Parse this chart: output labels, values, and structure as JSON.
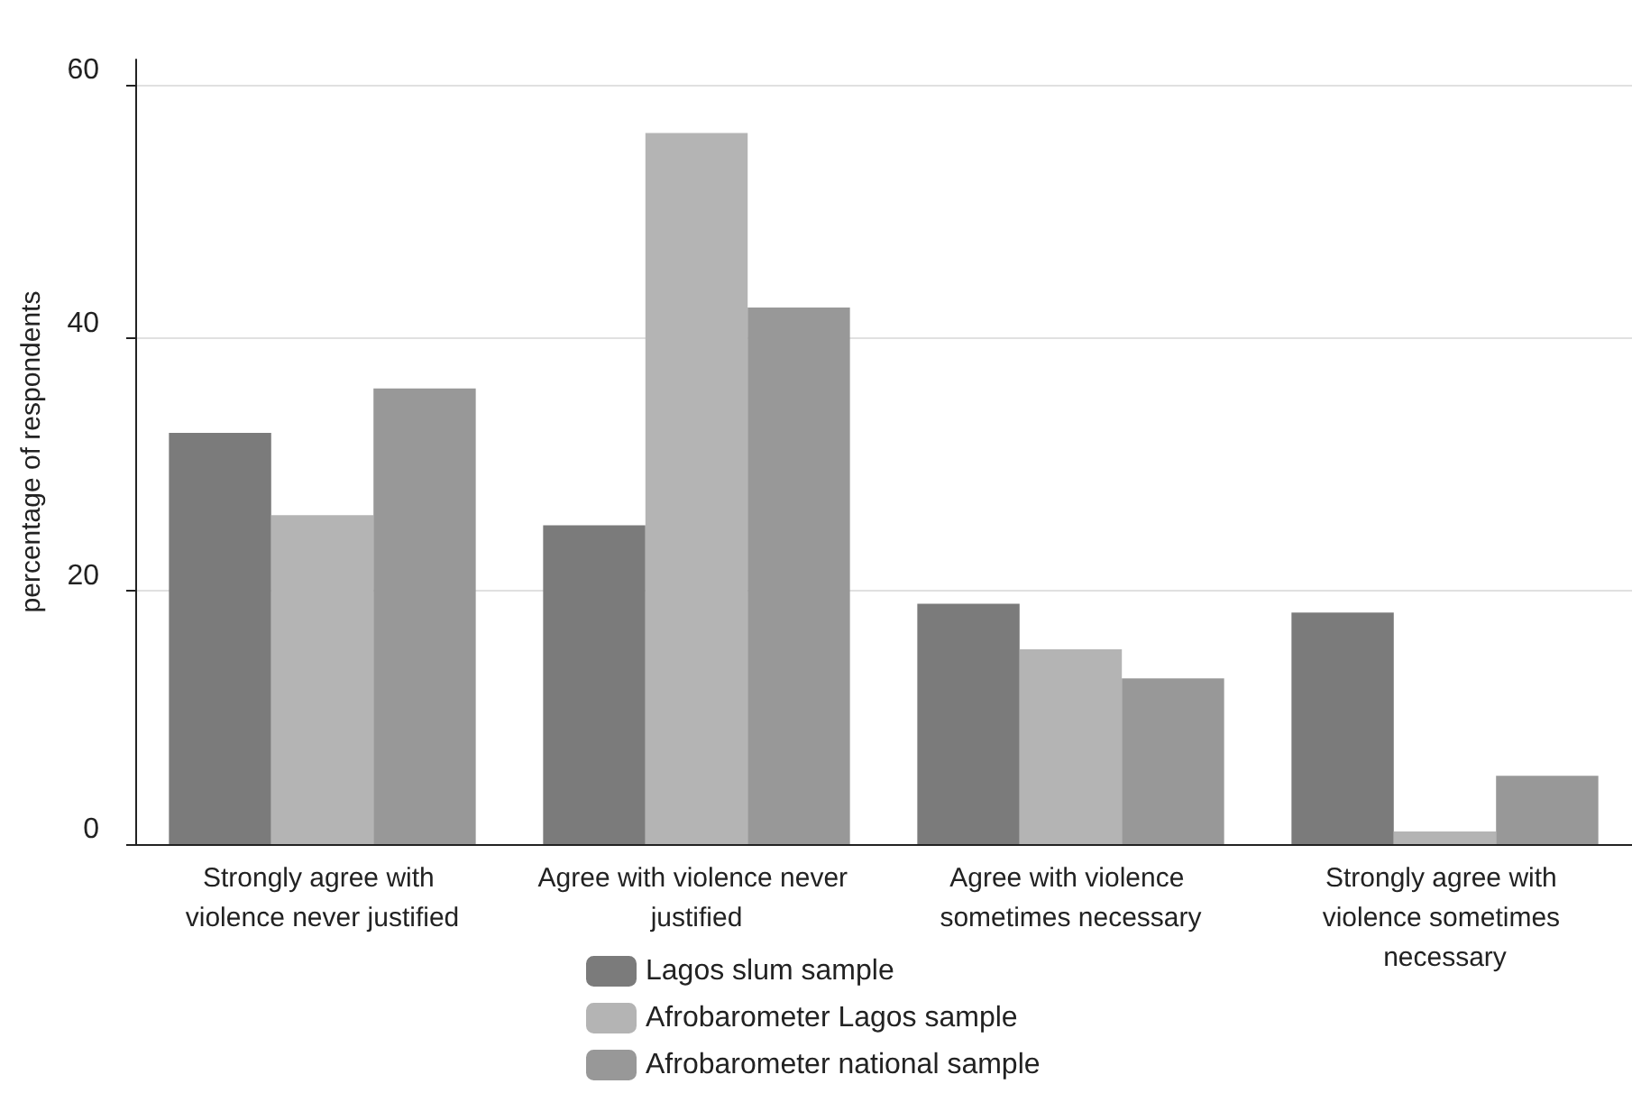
{
  "chart_data": {
    "type": "bar",
    "ylabel": "percentage of respondents",
    "categories": [
      "Strongly agree with violence never justified",
      "Agree with violence never justified",
      "Agree with violence sometimes necessary",
      "Strongly agree with violence sometimes necessary"
    ],
    "series": [
      {
        "name": "Lagos slum sample",
        "color": "#7b7b7b",
        "values": [
          32.5,
          25.2,
          19.0,
          18.3
        ]
      },
      {
        "name": "Afrobarometer Lagos sample",
        "color": "#b4b4b4",
        "values": [
          26.0,
          56.2,
          15.4,
          1.0
        ]
      },
      {
        "name": "Afrobarometer national sample",
        "color": "#989898",
        "values": [
          36.0,
          42.4,
          13.1,
          5.4
        ]
      }
    ],
    "ylim": [
      0,
      62
    ],
    "yticks": [
      0,
      20,
      40,
      60
    ],
    "grid": "y",
    "legend": "bottom"
  }
}
